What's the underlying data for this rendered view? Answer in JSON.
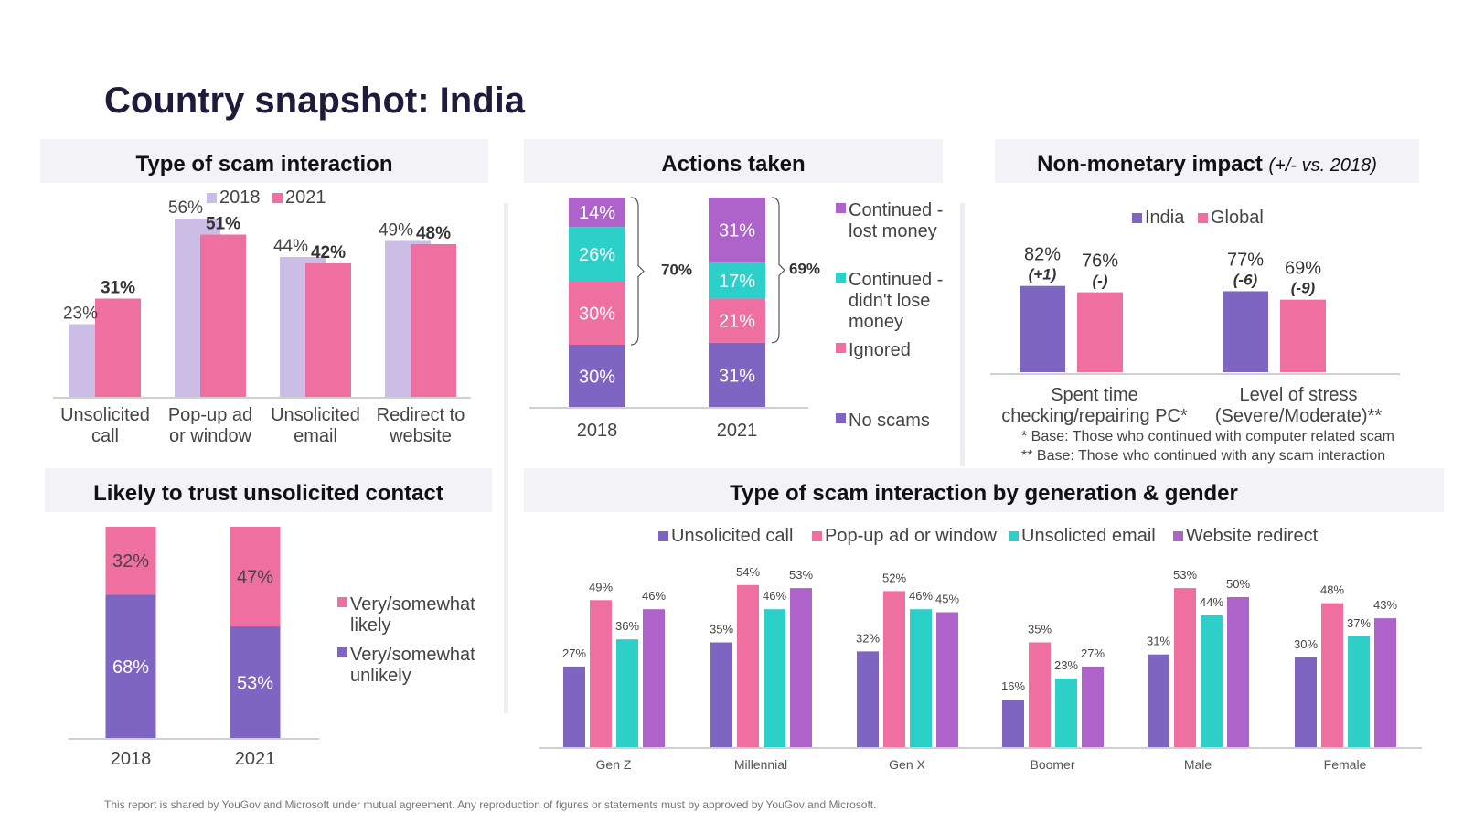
{
  "title": "Country snapshot: India",
  "footer": "This report is shared by YouGov and Microsoft under mutual agreement. Any reproduction of figures or statements must by approved by YouGov and Microsoft.",
  "colors": {
    "lavender": "#cbbde6",
    "pink": "#f06fa1",
    "purple": "#7f65c2",
    "teal": "#2dcfc9",
    "violet": "#ad63c9",
    "title": "#1e1c3a",
    "panel_bg": "#f2f2f7"
  },
  "chart_data": [
    {
      "id": "scam-type",
      "type": "bar",
      "title": "Type of scam interaction",
      "categories": [
        "Unsolicited\ncall",
        "Pop-up ad\nor window",
        "Unsolicited\nemail",
        "Redirect to\nwebsite"
      ],
      "series": [
        {
          "name": "2018",
          "values": [
            23,
            56,
            44,
            49
          ],
          "labels": [
            "23%",
            "56%",
            "44%",
            "49%"
          ]
        },
        {
          "name": "2021",
          "values": [
            31,
            51,
            42,
            48
          ],
          "labels": [
            "31%",
            "51%",
            "42%",
            "48%"
          ]
        }
      ],
      "ylim": [
        0,
        60
      ]
    },
    {
      "id": "actions",
      "type": "bar",
      "stacked": true,
      "title": "Actions taken",
      "categories": [
        "2018",
        "2021"
      ],
      "series": [
        {
          "name": "No scams",
          "values": [
            30,
            31
          ],
          "labels": [
            "30%",
            "31%"
          ]
        },
        {
          "name": "Ignored",
          "values": [
            30,
            21
          ],
          "labels": [
            "30%",
            "21%"
          ]
        },
        {
          "name": "Continued - didn't lose money",
          "values": [
            26,
            17
          ],
          "labels": [
            "26%",
            "17%"
          ]
        },
        {
          "name": "Continued - lost money",
          "values": [
            14,
            31
          ],
          "labels": [
            "14%",
            "31%"
          ]
        }
      ],
      "bracket_labels": [
        "70%",
        "69%"
      ],
      "ylim": [
        0,
        100
      ]
    },
    {
      "id": "non-monetary",
      "type": "bar",
      "title": "Non-monetary impact",
      "title_note": "(+/- vs. 2018)",
      "categories": [
        "Spent time\nchecking/repairing PC*",
        "Level of stress\n(Severe/Moderate)**"
      ],
      "series": [
        {
          "name": "India",
          "values": [
            82,
            77
          ],
          "labels": [
            "82%",
            "77%"
          ],
          "changes": [
            "(+1)",
            "(-6)"
          ]
        },
        {
          "name": "Global",
          "values": [
            76,
            69
          ],
          "labels": [
            "76%",
            "69%"
          ],
          "changes": [
            "(-)",
            "(-9)"
          ]
        }
      ],
      "notes": [
        "* Base: Those who continued with computer related scam",
        "** Base: Those who continued with any scam interaction"
      ],
      "ylim": [
        0,
        100
      ]
    },
    {
      "id": "trust",
      "type": "bar",
      "stacked": true,
      "title": "Likely to trust unsolicited contact",
      "categories": [
        "2018",
        "2021"
      ],
      "series": [
        {
          "name": "Very/somewhat unlikely",
          "values": [
            68,
            53
          ],
          "labels": [
            "68%",
            "53%"
          ]
        },
        {
          "name": "Very/somewhat likely",
          "values": [
            32,
            47
          ],
          "labels": [
            "32%",
            "47%"
          ]
        }
      ],
      "ylim": [
        0,
        100
      ]
    },
    {
      "id": "generation",
      "type": "bar",
      "title": "Type of scam interaction by generation & gender",
      "categories": [
        "Gen Z",
        "Millennial",
        "Gen X",
        "Boomer",
        "Male",
        "Female"
      ],
      "series": [
        {
          "name": "Unsolicited call",
          "values": [
            27,
            35,
            32,
            16,
            31,
            30
          ],
          "labels": [
            "27%",
            "35%",
            "32%",
            "16%",
            "31%",
            "30%"
          ]
        },
        {
          "name": "Pop-up ad or window",
          "values": [
            49,
            54,
            52,
            35,
            53,
            48
          ],
          "labels": [
            "49%",
            "54%",
            "52%",
            "35%",
            "53%",
            "48%"
          ]
        },
        {
          "name": "Unsolicted email",
          "values": [
            36,
            46,
            46,
            23,
            44,
            37
          ],
          "labels": [
            "36%",
            "46%",
            "46%",
            "23%",
            "44%",
            "37%"
          ]
        },
        {
          "name": "Website redirect",
          "values": [
            46,
            53,
            45,
            27,
            50,
            43
          ],
          "labels": [
            "46%",
            "53%",
            "45%",
            "27%",
            "50%",
            "43%"
          ]
        }
      ],
      "ylim": [
        0,
        60
      ]
    }
  ]
}
